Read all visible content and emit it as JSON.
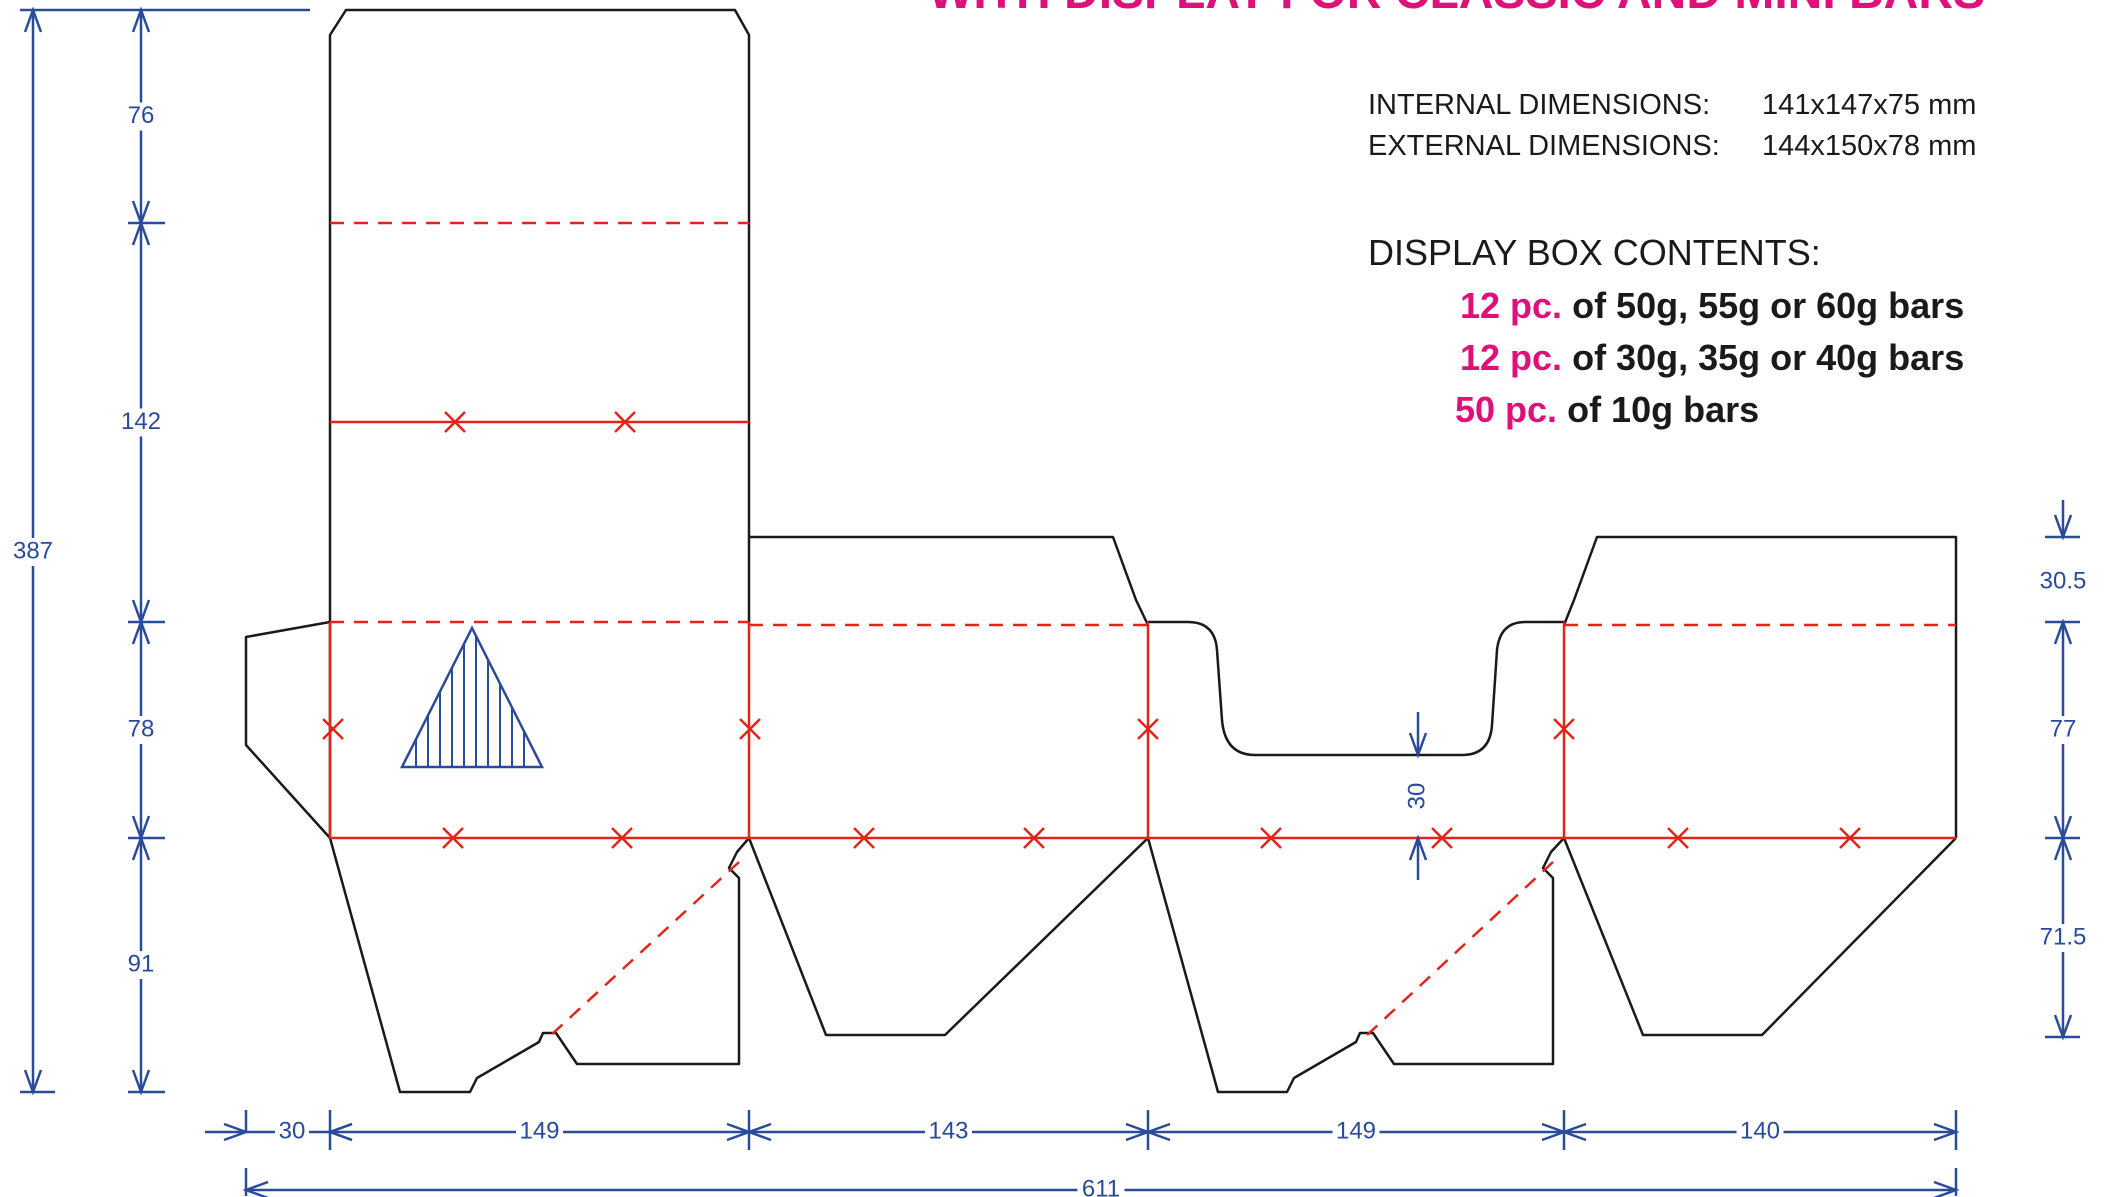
{
  "title_partial": "WITH DISPLAY FOR CLASSIC AND MINI BARS",
  "colors": {
    "cut": "#1a1a1a",
    "fold": "#e3241b",
    "dimension": "#2a4a9a",
    "accent": "#e0107a",
    "text": "#1a1a1a"
  },
  "dimensions_info": [
    {
      "label": "INTERNAL DIMENSIONS:",
      "value": "141x147x75 mm"
    },
    {
      "label": "EXTERNAL DIMENSIONS:",
      "value": "144x150x78 mm"
    }
  ],
  "contents": {
    "heading": "DISPLAY BOX CONTENTS:",
    "items": [
      {
        "qty": "12 pc.",
        "desc": "of 50g, 55g or 60g bars"
      },
      {
        "qty": "12 pc.",
        "desc": "of 30g, 35g or 40g bars"
      },
      {
        "qty": "50 pc.",
        "desc": "of 10g bars"
      }
    ]
  },
  "measurements": {
    "left_total": "387",
    "left": [
      "76",
      "142",
      "78",
      "91"
    ],
    "bottom": [
      "30",
      "149",
      "143",
      "149",
      "140"
    ],
    "bottom_total": "611",
    "right": [
      "30.5",
      "77",
      "71.5"
    ],
    "cutout_depth": "30"
  }
}
